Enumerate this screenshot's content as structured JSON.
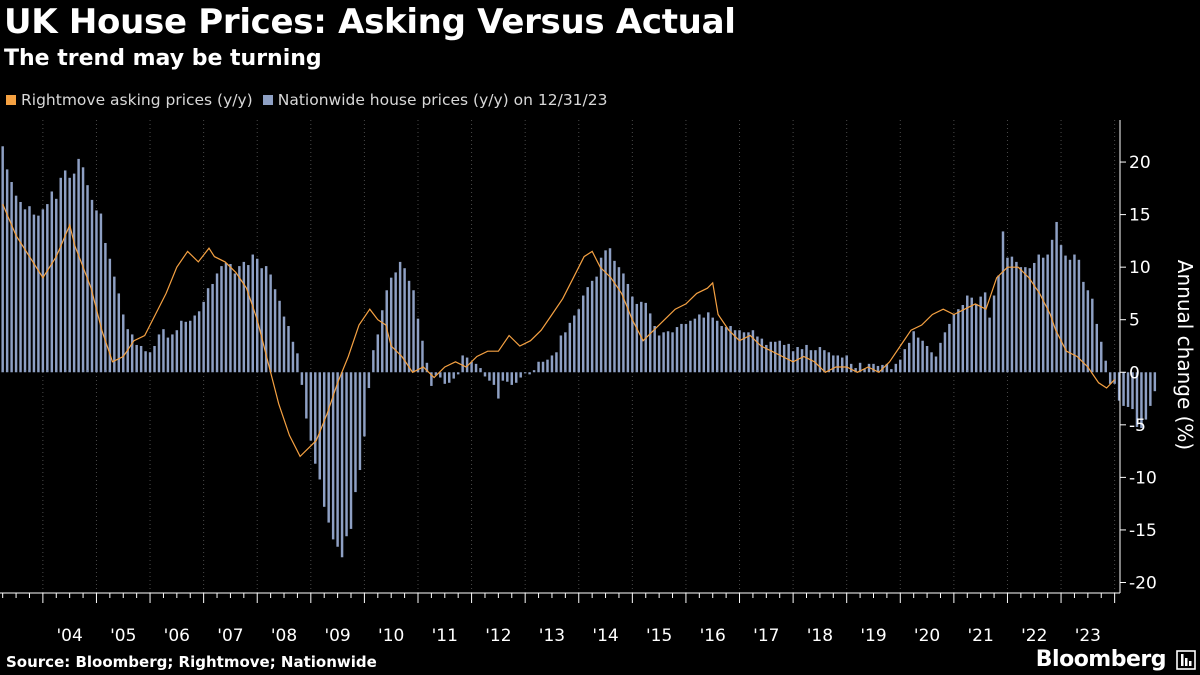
{
  "title": "UK House Prices: Asking Versus Actual",
  "subtitle": "The trend may be turning",
  "source": "Source: Bloomberg; Rightmove; Nationwide",
  "brand": "Bloomberg",
  "colors": {
    "asking": "#f5a142",
    "actual": "#8ea0c4",
    "background": "#000000",
    "grid": "#4a4a4a"
  },
  "chart_data": {
    "type": "bar",
    "title": "UK House Prices: Asking Versus Actual",
    "subtitle": "The trend may be turning",
    "ylabel": "Annual change (%)",
    "xlabel": "",
    "ylim": [
      -21,
      24
    ],
    "yticks": [
      20,
      15,
      10,
      5,
      0,
      -5,
      -10,
      -15,
      -20
    ],
    "xlim": [
      2003.2,
      2024.1
    ],
    "x_tick_years": [
      2004,
      2005,
      2006,
      2007,
      2008,
      2009,
      2010,
      2011,
      2012,
      2013,
      2014,
      2015,
      2016,
      2017,
      2018,
      2019,
      2020,
      2021,
      2022,
      2023
    ],
    "x_tick_labels": [
      "'04",
      "'05",
      "'06",
      "'07",
      "'08",
      "'09",
      "'10",
      "'11",
      "'12",
      "'13",
      "'14",
      "'15",
      "'16",
      "'17",
      "'18",
      "'19",
      "'20",
      "'21",
      "'22",
      "'23"
    ],
    "legend": {
      "placement": "top-left",
      "entries": [
        "Rightmove asking prices (y/y)",
        "Nationwide house prices (y/y) on 12/31/23"
      ]
    },
    "series": [
      {
        "name": "Nationwide house prices (y/y) on 12/31/23",
        "kind": "bar",
        "start": 2003.25,
        "step": 0.0833333,
        "values": [
          21.5,
          19.3,
          18.1,
          16.8,
          16.2,
          15.5,
          15.8,
          15.0,
          14.9,
          15.5,
          16.0,
          17.2,
          16.5,
          18.5,
          19.2,
          18.5,
          18.9,
          20.3,
          19.5,
          17.8,
          16.4,
          15.4,
          15.1,
          12.3,
          10.8,
          9.1,
          7.5,
          5.5,
          4.1,
          3.6,
          2.6,
          2.5,
          2.0,
          1.9,
          2.5,
          3.6,
          4.1,
          3.3,
          3.6,
          4.0,
          4.9,
          4.8,
          4.9,
          5.4,
          5.8,
          6.7,
          8.0,
          8.4,
          9.4,
          10.1,
          10.4,
          10.3,
          9.4,
          10.1,
          10.5,
          10.2,
          11.2,
          10.8,
          9.9,
          10.1,
          9.3,
          7.9,
          6.8,
          5.3,
          4.4,
          2.9,
          1.8,
          -1.2,
          -4.4,
          -6.5,
          -8.7,
          -10.2,
          -12.8,
          -14.3,
          -15.9,
          -16.6,
          -17.6,
          -15.6,
          -14.9,
          -11.4,
          -9.3,
          -6.1,
          -1.5,
          2.1,
          3.6,
          5.9,
          7.8,
          9.0,
          9.5,
          10.5,
          9.9,
          8.7,
          7.8,
          5.1,
          3.0,
          0.9,
          -1.3,
          -0.3,
          -0.5,
          -1.1,
          -1.0,
          -0.6,
          -0.2,
          1.6,
          1.4,
          1.0,
          0.8,
          0.4,
          -0.4,
          -0.8,
          -1.2,
          -2.5,
          -0.8,
          -0.9,
          -1.2,
          -1.0,
          -0.5,
          -0.1,
          -0.2,
          0.2,
          1.0,
          1.0,
          1.2,
          1.6,
          1.9,
          3.5,
          3.8,
          4.7,
          5.4,
          6.0,
          7.3,
          8.1,
          8.7,
          9.1,
          10.9,
          11.6,
          11.8,
          10.6,
          10.0,
          9.4,
          8.4,
          7.2,
          6.5,
          6.7,
          6.6,
          5.6,
          4.4,
          3.5,
          3.8,
          3.9,
          3.8,
          4.3,
          4.6,
          4.6,
          4.9,
          5.1,
          5.5,
          5.2,
          5.7,
          5.2,
          4.9,
          4.4,
          4.3,
          4.4,
          4.0,
          4.0,
          3.8,
          3.8,
          4.0,
          3.4,
          3.2,
          2.6,
          2.9,
          2.9,
          3.0,
          2.6,
          2.7,
          2.0,
          2.4,
          2.2,
          2.6,
          2.1,
          2.1,
          2.4,
          2.1,
          1.9,
          1.6,
          1.6,
          1.4,
          1.6,
          0.8,
          0.4,
          0.9,
          0.3,
          0.8,
          0.8,
          0.6,
          0.7,
          0.8,
          0.3,
          0.8,
          1.2,
          2.2,
          2.8,
          3.9,
          3.3,
          3.0,
          2.5,
          1.9,
          1.5,
          2.8,
          3.8,
          4.6,
          5.5,
          6.0,
          6.4,
          7.3,
          7.1,
          6.5,
          7.2,
          7.6,
          5.2,
          7.3,
          9.2,
          13.4,
          10.9,
          11.0,
          10.5,
          10.0,
          10.0,
          9.9,
          10.4,
          11.2,
          10.9,
          11.2,
          12.6,
          14.3,
          12.1,
          11.1,
          10.7,
          11.2,
          10.7,
          8.6,
          7.8,
          7.0,
          4.6,
          2.9,
          1.1,
          -1.1,
          -1.1,
          -2.7,
          -3.2,
          -3.3,
          -3.5,
          -5.2,
          -5.3,
          -4.5,
          -3.2,
          -1.8
        ]
      },
      {
        "name": "Rightmove asking prices (y/y)",
        "kind": "line",
        "points": [
          [
            2003.25,
            16.0
          ],
          [
            2003.5,
            13.0
          ],
          [
            2003.75,
            11.0
          ],
          [
            2004.0,
            9.0
          ],
          [
            2004.25,
            11.0
          ],
          [
            2004.5,
            14.0
          ],
          [
            2004.6,
            12.0
          ],
          [
            2004.75,
            10.0
          ],
          [
            2004.9,
            8.0
          ],
          [
            2005.1,
            4.0
          ],
          [
            2005.3,
            1.0
          ],
          [
            2005.5,
            1.5
          ],
          [
            2005.7,
            3.0
          ],
          [
            2005.9,
            3.5
          ],
          [
            2006.1,
            5.5
          ],
          [
            2006.3,
            7.5
          ],
          [
            2006.5,
            10.0
          ],
          [
            2006.7,
            11.5
          ],
          [
            2006.9,
            10.5
          ],
          [
            2007.1,
            11.8
          ],
          [
            2007.2,
            11.0
          ],
          [
            2007.4,
            10.5
          ],
          [
            2007.6,
            9.5
          ],
          [
            2007.8,
            8.0
          ],
          [
            2008.0,
            5.0
          ],
          [
            2008.2,
            1.0
          ],
          [
            2008.4,
            -3.0
          ],
          [
            2008.6,
            -6.0
          ],
          [
            2008.8,
            -8.0
          ],
          [
            2008.9,
            -7.5
          ],
          [
            2009.1,
            -6.5
          ],
          [
            2009.3,
            -4.0
          ],
          [
            2009.5,
            -1.0
          ],
          [
            2009.7,
            1.5
          ],
          [
            2009.9,
            4.5
          ],
          [
            2010.1,
            6.0
          ],
          [
            2010.25,
            5.0
          ],
          [
            2010.4,
            4.5
          ],
          [
            2010.5,
            2.5
          ],
          [
            2010.7,
            1.5
          ],
          [
            2010.9,
            0.0
          ],
          [
            2011.1,
            0.5
          ],
          [
            2011.3,
            -0.5
          ],
          [
            2011.5,
            0.5
          ],
          [
            2011.7,
            1.0
          ],
          [
            2011.9,
            0.5
          ],
          [
            2012.1,
            1.5
          ],
          [
            2012.3,
            2.0
          ],
          [
            2012.5,
            2.0
          ],
          [
            2012.7,
            3.5
          ],
          [
            2012.9,
            2.5
          ],
          [
            2013.1,
            3.0
          ],
          [
            2013.3,
            4.0
          ],
          [
            2013.5,
            5.5
          ],
          [
            2013.7,
            7.0
          ],
          [
            2013.9,
            9.0
          ],
          [
            2014.1,
            11.0
          ],
          [
            2014.25,
            11.5
          ],
          [
            2014.4,
            10.0
          ],
          [
            2014.6,
            9.0
          ],
          [
            2014.8,
            7.5
          ],
          [
            2015.0,
            5.0
          ],
          [
            2015.2,
            3.0
          ],
          [
            2015.4,
            4.0
          ],
          [
            2015.6,
            5.0
          ],
          [
            2015.8,
            6.0
          ],
          [
            2016.0,
            6.5
          ],
          [
            2016.2,
            7.5
          ],
          [
            2016.4,
            8.0
          ],
          [
            2016.5,
            8.5
          ],
          [
            2016.6,
            5.5
          ],
          [
            2016.8,
            4.0
          ],
          [
            2017.0,
            3.0
          ],
          [
            2017.2,
            3.5
          ],
          [
            2017.4,
            2.5
          ],
          [
            2017.6,
            2.0
          ],
          [
            2017.8,
            1.5
          ],
          [
            2018.0,
            1.0
          ],
          [
            2018.2,
            1.5
          ],
          [
            2018.4,
            1.0
          ],
          [
            2018.6,
            0.0
          ],
          [
            2018.8,
            0.5
          ],
          [
            2019.0,
            0.5
          ],
          [
            2019.2,
            0.0
          ],
          [
            2019.4,
            0.5
          ],
          [
            2019.6,
            0.0
          ],
          [
            2019.8,
            1.0
          ],
          [
            2020.0,
            2.5
          ],
          [
            2020.2,
            4.0
          ],
          [
            2020.4,
            4.5
          ],
          [
            2020.6,
            5.5
          ],
          [
            2020.8,
            6.0
          ],
          [
            2021.0,
            5.5
          ],
          [
            2021.2,
            6.0
          ],
          [
            2021.4,
            6.5
          ],
          [
            2021.6,
            6.0
          ],
          [
            2021.8,
            9.0
          ],
          [
            2022.0,
            10.0
          ],
          [
            2022.2,
            10.0
          ],
          [
            2022.4,
            9.0
          ],
          [
            2022.6,
            7.5
          ],
          [
            2022.8,
            5.5
          ],
          [
            2022.9,
            4.0
          ],
          [
            2023.1,
            2.0
          ],
          [
            2023.3,
            1.5
          ],
          [
            2023.5,
            0.5
          ],
          [
            2023.7,
            -1.0
          ],
          [
            2023.85,
            -1.5
          ],
          [
            2024.0,
            -0.7
          ]
        ]
      }
    ]
  }
}
